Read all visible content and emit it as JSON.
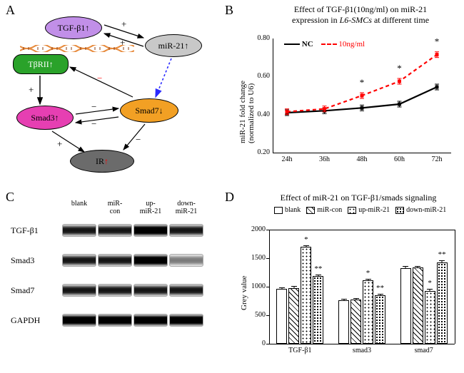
{
  "panelA": {
    "label": "A",
    "nodes": {
      "tgfb1": {
        "text": "TGF-β1↑",
        "fill": "#c18fe8",
        "text_color": "#000"
      },
      "mir21": {
        "text": "miR-21↑",
        "fill": "#c8c8c8",
        "text_color": "#000"
      },
      "tbr2": {
        "text": "TβRII↑",
        "fill": "#2aa22a",
        "text_color": "#fff"
      },
      "smad3": {
        "text": "Smad3↑",
        "fill": "#e63fb2",
        "text_color": "#000"
      },
      "smad7": {
        "text": "Smad7↓",
        "fill": "#f2a024",
        "text_color": "#000"
      },
      "ir": {
        "text": "IR",
        "fill": "#6b6b6b",
        "text_color": "#000",
        "arrow_suffix": "↑",
        "arrow_color": "#ff0000"
      }
    },
    "edge_signs": {
      "tgfb1_mir21_top": "+",
      "tgfb1_mir21_bot": "+",
      "tbr2_smad3": "+",
      "smad3_smad7_top": "−",
      "smad7_smad3_bot": "−",
      "smad7_tbr2": "−",
      "mir21_smad7": "",
      "smad3_ir": "+",
      "smad7_ir": "−"
    },
    "dna_colors": {
      "backbone": "#e78a3c",
      "rungs": "#8b3e12"
    }
  },
  "panelB": {
    "label": "B",
    "title_line1": "Effect of TGF-β1(10ng/ml) on miR-21",
    "title_line2_prefix": "expression in ",
    "title_line2_italic": "L6-SMCs",
    "title_line2_suffix": " at different time",
    "ylabel": "miR-21 fold change\n(normalized to U6)",
    "ylim": [
      0.2,
      0.8
    ],
    "yticks": [
      0.2,
      0.4,
      0.6,
      0.8
    ],
    "xticks": [
      "24h",
      "36h",
      "48h",
      "60h",
      "72h"
    ],
    "series": {
      "nc": {
        "label": "NC",
        "color": "#000000",
        "dash": "solid",
        "y": [
          0.41,
          0.42,
          0.435,
          0.455,
          0.545
        ]
      },
      "dose": {
        "label": "10ng/ml",
        "color": "#ff0000",
        "dash": "dashed",
        "y": [
          0.415,
          0.43,
          0.5,
          0.575,
          0.715
        ]
      }
    },
    "err_half": 0.015,
    "sig_marker": "*",
    "sig_at": [
      2,
      3,
      4
    ]
  },
  "panelC": {
    "label": "C",
    "lane_headers": [
      "blank",
      "miR-con",
      "up-miR-21",
      "down-miR-21"
    ],
    "rows": [
      {
        "name": "TGF-β1",
        "intensity": [
          "med",
          "med",
          "strong",
          "med"
        ]
      },
      {
        "name": "Smad3",
        "intensity": [
          "med",
          "med",
          "strong",
          "faint"
        ]
      },
      {
        "name": "Smad7",
        "intensity": [
          "med",
          "med",
          "med",
          "med"
        ]
      },
      {
        "name": "GAPDH",
        "intensity": [
          "strong",
          "strong",
          "strong",
          "strong"
        ]
      }
    ]
  },
  "panelD": {
    "label": "D",
    "title": "Effect of miR-21 on TGF-β1/smads signaling",
    "ylabel": "Grey value",
    "ylim": [
      0,
      2000
    ],
    "yticks": [
      0,
      500,
      1000,
      1500,
      2000
    ],
    "groups": [
      "TGF-β1",
      "smad3",
      "smad7"
    ],
    "conditions": [
      "blank",
      "miR-con",
      "up-miR-21",
      "down-miR-21"
    ],
    "colors": {
      "blank": "pat-blank",
      "miR-con": "pat-mircon",
      "up-miR-21": "pat-up",
      "down-miR-21": "pat-down"
    },
    "values": {
      "TGF-β1": [
        960,
        980,
        1700,
        1190
      ],
      "smad3": [
        760,
        770,
        1110,
        850
      ],
      "smad7": [
        1330,
        1340,
        930,
        1430
      ]
    },
    "err_half": 40,
    "sig": {
      "TGF-β1": [
        "",
        "",
        "*",
        "**"
      ],
      "smad3": [
        "",
        "",
        "*",
        "**"
      ],
      "smad7": [
        "",
        "",
        "*",
        "**"
      ]
    }
  }
}
